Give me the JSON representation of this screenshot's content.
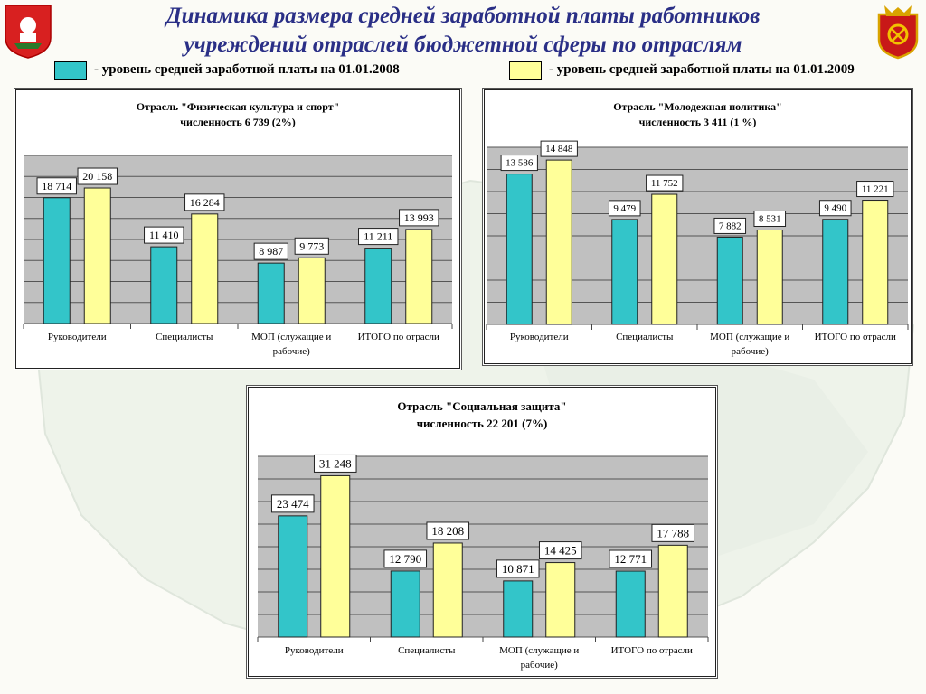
{
  "title_line1": "Динамика размера средней заработной платы работников",
  "title_line2": "учреждений отраслей бюджетной сферы по отраслям",
  "legend": [
    {
      "label": "- уровень средней заработной платы на 01.01.2008",
      "color": "#33c5c9"
    },
    {
      "label": "- уровень средней заработной платы на 01.01.2009",
      "color": "#ffff99"
    }
  ],
  "chart_data": [
    {
      "type": "bar",
      "title": "Отрасль \"Физическая культура и спорт\"",
      "subtitle": "численность 6 739 (2%)",
      "categories": [
        "Руководители",
        "Специалисты",
        "МОП (служащие и рабочие)",
        "ИТОГО по отрасли"
      ],
      "series": [
        {
          "values": [
            18714,
            11410,
            8987,
            11211
          ],
          "labels": [
            "18 714",
            "11 410",
            "8 987",
            "11 211"
          ],
          "color": "#33c5c9"
        },
        {
          "values": [
            20158,
            16284,
            9773,
            13993
          ],
          "labels": [
            "20 158",
            "16 284",
            "9 773",
            "13 993"
          ],
          "color": "#ffff99"
        }
      ],
      "ylim": [
        0,
        25000
      ],
      "grid": true
    },
    {
      "type": "bar",
      "title": "Отрасль \"Молодежная политика\"",
      "subtitle": "численность 3 411 (1 %)",
      "categories": [
        "Руководители",
        "Специалисты",
        "МОП (служащие и рабочие)",
        "ИТОГО по отрасли"
      ],
      "series": [
        {
          "values": [
            13586,
            9479,
            7882,
            9490
          ],
          "labels": [
            "13 586",
            "9 479",
            "7 882",
            "9 490"
          ],
          "color": "#33c5c9"
        },
        {
          "values": [
            14848,
            11752,
            8531,
            11221
          ],
          "labels": [
            "14 848",
            "11 752",
            "8 531",
            "11 221"
          ],
          "color": "#ffff99"
        }
      ],
      "ylim": [
        0,
        16000
      ],
      "grid": true
    },
    {
      "type": "bar",
      "title": "Отрасль \"Социальная защита\"",
      "subtitle": "численность 22 201 (7%)",
      "categories": [
        "Руководители",
        "Специалисты",
        "МОП (служащие и рабочие)",
        "ИТОГО по отрасли"
      ],
      "series": [
        {
          "values": [
            23474,
            12790,
            10871,
            12771
          ],
          "labels": [
            "23 474",
            "12 790",
            "10 871",
            "12 771"
          ],
          "color": "#33c5c9"
        },
        {
          "values": [
            31248,
            18208,
            14425,
            17788
          ],
          "labels": [
            "31 248",
            "18 208",
            "14 425",
            "17 788"
          ],
          "color": "#ffff99"
        }
      ],
      "ylim": [
        0,
        35000
      ],
      "grid": true
    }
  ]
}
